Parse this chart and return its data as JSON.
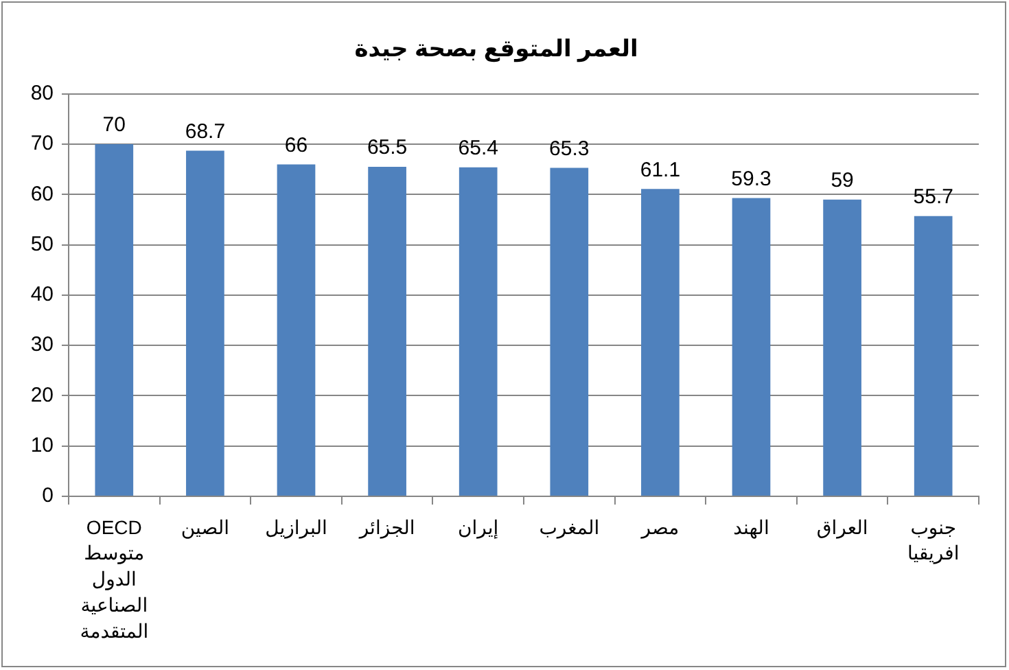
{
  "chart_data": {
    "type": "bar",
    "title": "العمر المتوقع بصحة جيدة",
    "categories": [
      "OECD متوسط الدول الصناعية المتقدمة",
      "الصين",
      "البرازيل",
      "الجزائر",
      "إيران",
      "المغرب",
      "مصر",
      "الهند",
      "العراق",
      "جنوب افريقيا"
    ],
    "values": [
      70,
      68.7,
      66,
      65.5,
      65.4,
      65.3,
      61.1,
      59.3,
      59,
      55.7
    ],
    "color": "#4f81bd",
    "ylim": [
      0,
      80
    ],
    "yticks": [
      0,
      10,
      20,
      30,
      40,
      50,
      60,
      70,
      80
    ],
    "grid": "y",
    "data_labels": true
  }
}
